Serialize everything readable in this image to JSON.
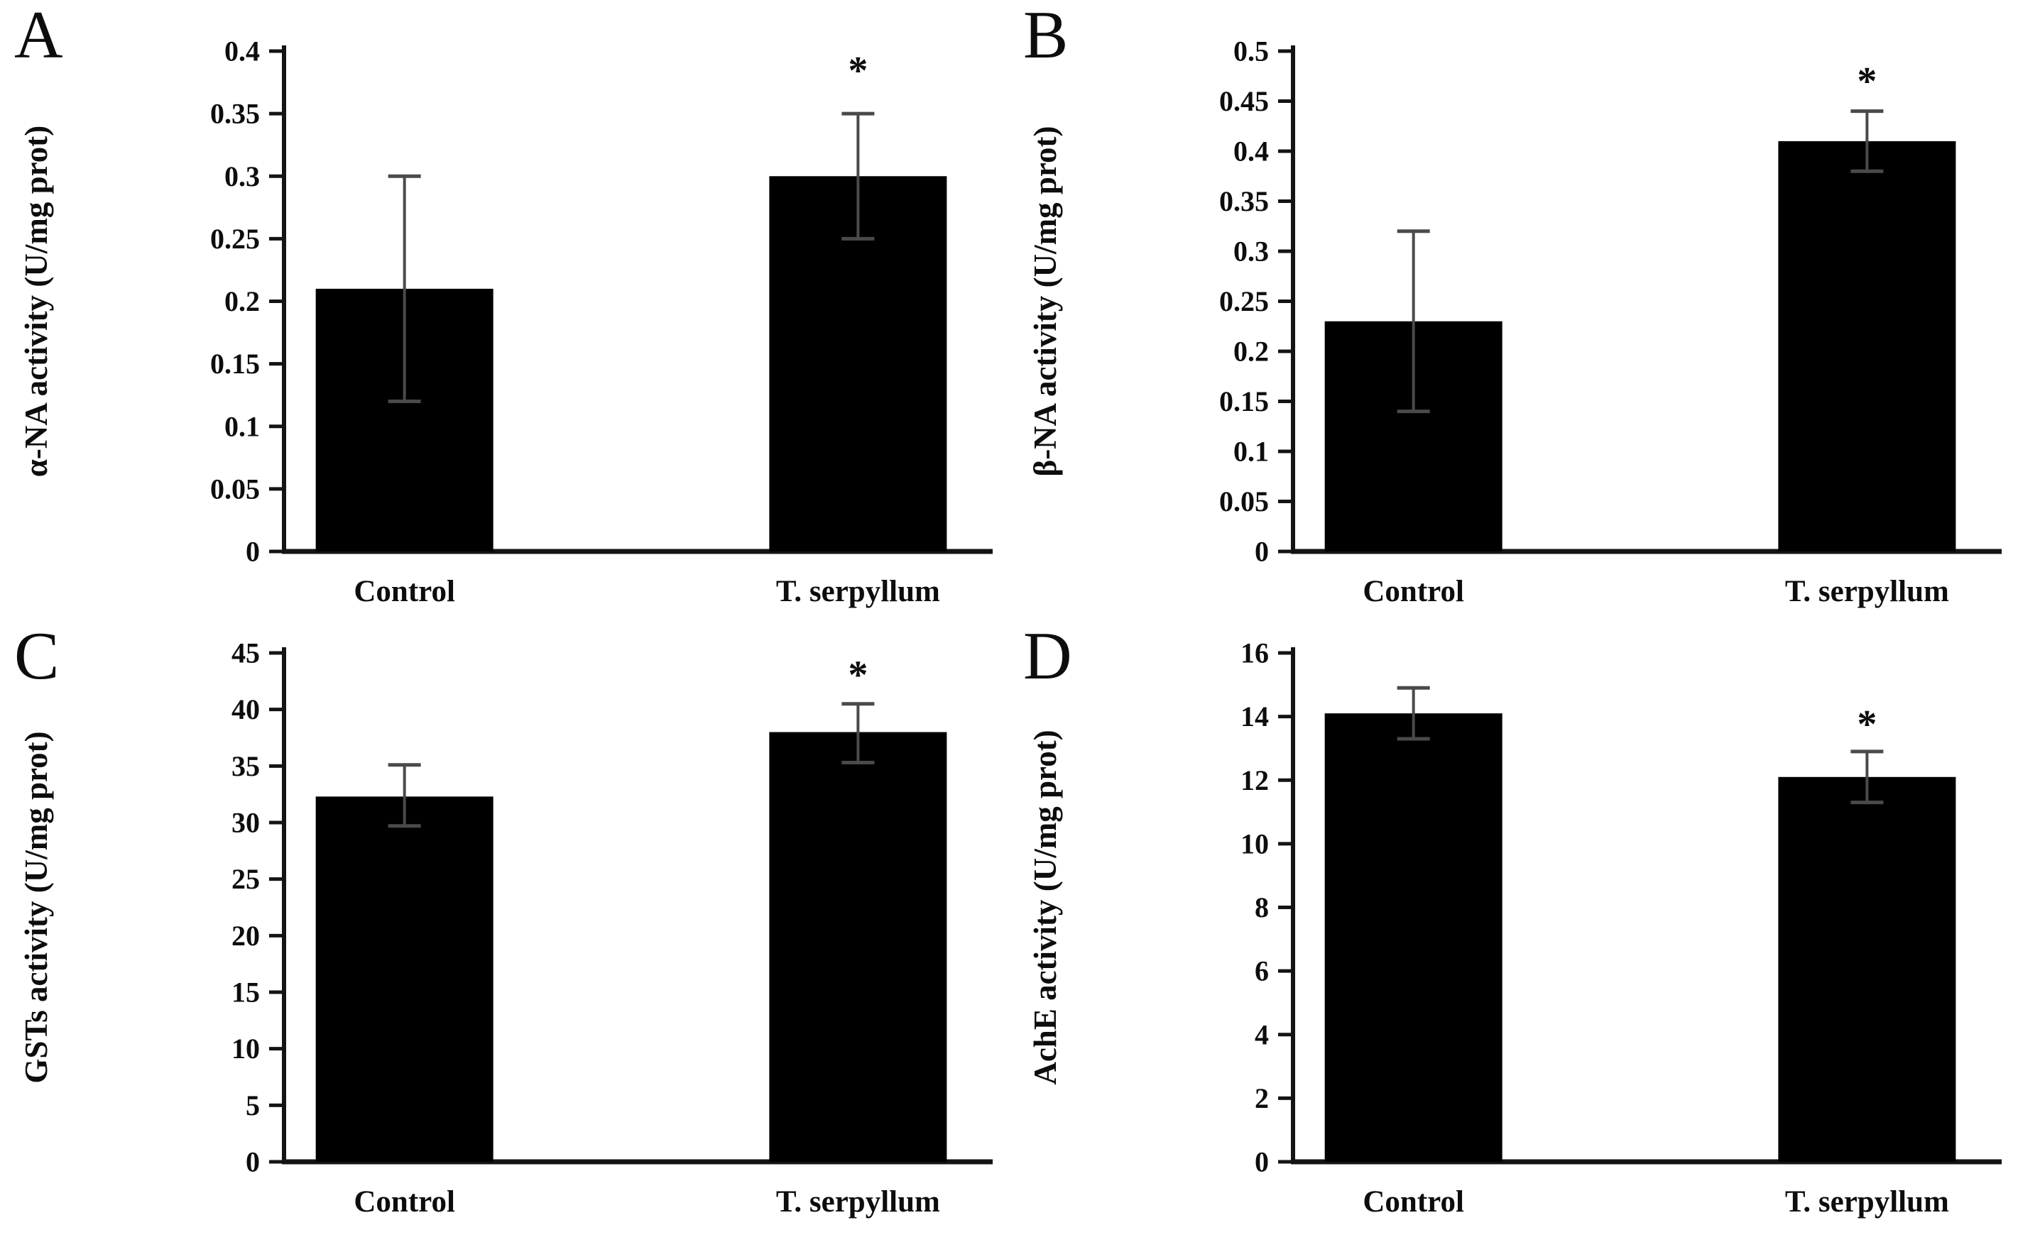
{
  "figure": {
    "description": "Four-panel bar chart figure comparing enzyme activities between Control and T. serpyllum groups, with error bars and significance asterisks"
  },
  "style": {
    "background": "#ffffff",
    "bar_color": "#000000",
    "axis_color": "#141414",
    "error_bar_color": "#4a4a4a",
    "significance_color": "#4d5666",
    "text_color": "#0d0d0d"
  },
  "chart_data": {
    "panels": [
      {
        "letter": "A",
        "type": "bar",
        "categories": [
          "Control",
          "T. serpyllum"
        ],
        "values": [
          0.21,
          0.3
        ],
        "error_low": [
          0.12,
          0.25
        ],
        "error_high": [
          0.3,
          0.35
        ],
        "significance": [
          null,
          "*"
        ],
        "sig_y": [
          null,
          0.383
        ],
        "ylabel": "α-NA activity (U/mg prot)",
        "ylim": [
          0,
          0.4
        ],
        "grid": "off",
        "ytick_values": [
          0,
          0.05,
          0.1,
          0.15,
          0.2,
          0.25,
          0.3,
          0.35,
          0.4
        ],
        "ytick_labels": [
          "0",
          "0.05",
          "0.1",
          "0.15",
          "0.2",
          "0.25",
          "0.3",
          "0.35",
          "0.4"
        ]
      },
      {
        "letter": "B",
        "type": "bar",
        "categories": [
          "Control",
          "T. serpyllum"
        ],
        "values": [
          0.23,
          0.41
        ],
        "error_low": [
          0.14,
          0.38
        ],
        "error_high": [
          0.32,
          0.44
        ],
        "significance": [
          null,
          "*"
        ],
        "sig_y": [
          null,
          0.468
        ],
        "ylabel": "β-NA activity (U/mg prot)",
        "ylim": [
          0,
          0.5
        ],
        "grid": "off",
        "ytick_values": [
          0,
          0.05,
          0.1,
          0.15,
          0.2,
          0.25,
          0.3,
          0.35,
          0.4,
          0.45,
          0.5
        ],
        "ytick_labels": [
          "0",
          "0.05",
          "0.1",
          "0.15",
          "0.2",
          "0.25",
          "0.3",
          "0.35",
          "0.4",
          "0.45",
          "0.5"
        ]
      },
      {
        "letter": "C",
        "type": "bar",
        "categories": [
          "Control",
          "T. serpyllum"
        ],
        "values": [
          32.3,
          38.0
        ],
        "error_low": [
          29.7,
          35.3
        ],
        "error_high": [
          35.1,
          40.5
        ],
        "significance": [
          null,
          "*"
        ],
        "sig_y": [
          null,
          42.9
        ],
        "ylabel": "GSTs activity (U/mg prot)",
        "ylim": [
          0,
          45
        ],
        "grid": "off",
        "ytick_values": [
          0,
          5,
          10,
          15,
          20,
          25,
          30,
          35,
          40,
          45
        ],
        "ytick_labels": [
          "0",
          "5",
          "10",
          "15",
          "20",
          "25",
          "30",
          "35",
          "40",
          "45"
        ]
      },
      {
        "letter": "D",
        "type": "bar",
        "categories": [
          "Control",
          "T. serpyllum"
        ],
        "values": [
          14.1,
          12.1
        ],
        "error_low": [
          13.3,
          11.3
        ],
        "error_high": [
          14.9,
          12.9
        ],
        "significance": [
          null,
          "*"
        ],
        "sig_y": [
          null,
          13.7
        ],
        "ylabel": "AchE activity (U/mg prot)",
        "ylim": [
          0,
          16
        ],
        "grid": "off",
        "ytick_values": [
          0,
          2,
          4,
          6,
          8,
          10,
          12,
          14,
          16
        ],
        "ytick_labels": [
          "0",
          "2",
          "4",
          "6",
          "8",
          "10",
          "12",
          "14",
          "16"
        ]
      }
    ]
  }
}
